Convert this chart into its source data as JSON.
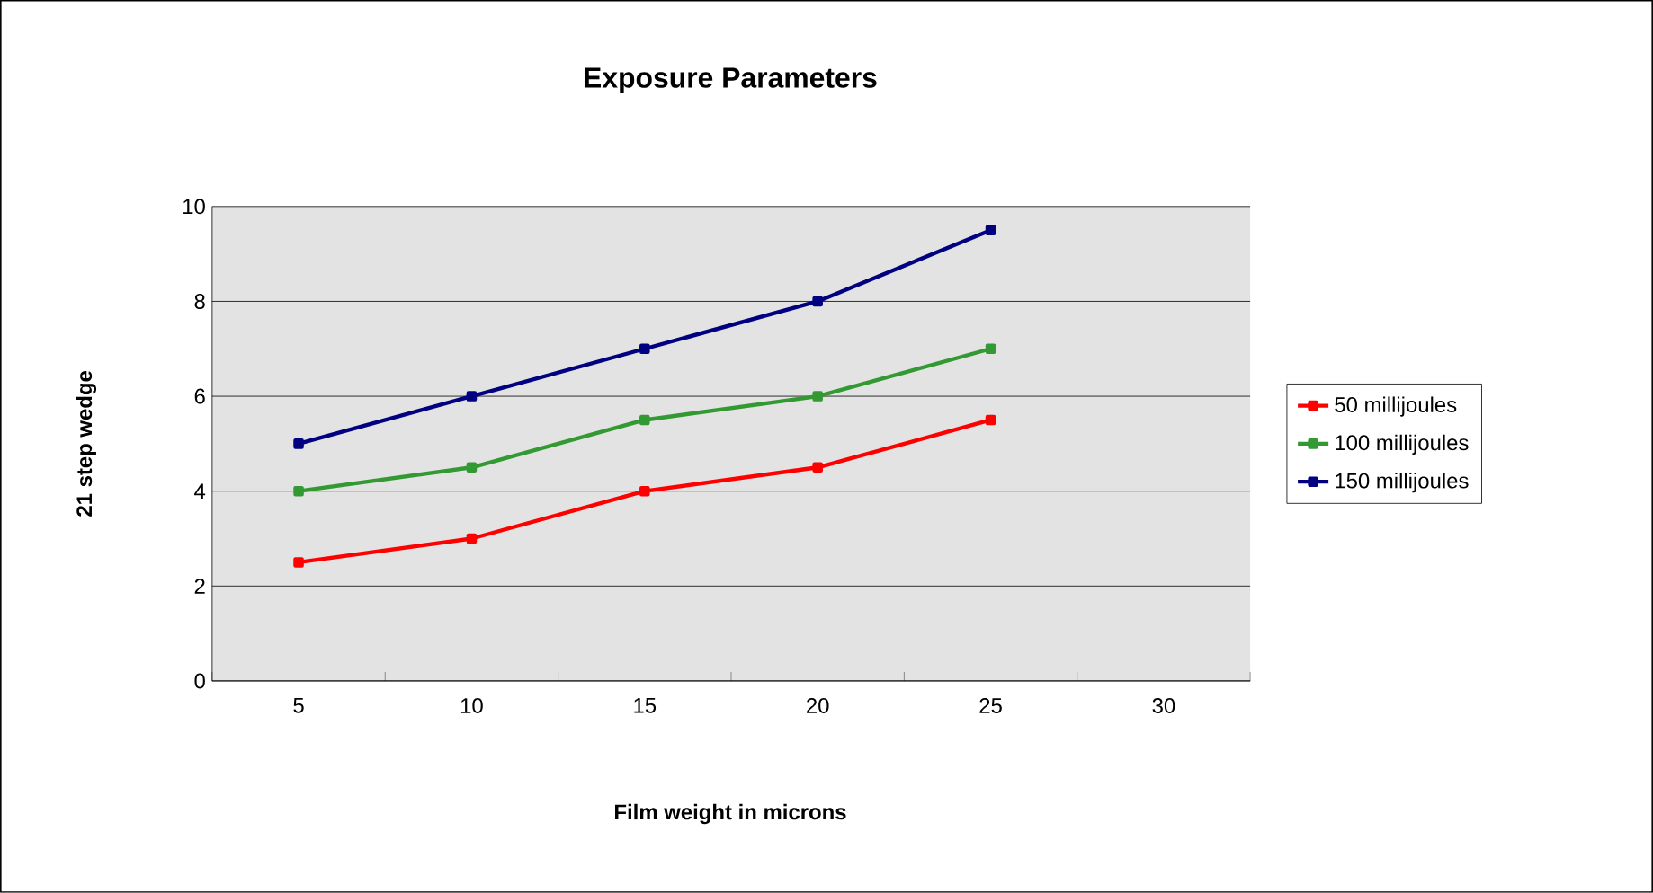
{
  "chart_data": {
    "type": "line",
    "title": "Exposure Parameters",
    "xlabel": "Film weight in microns",
    "ylabel": "21 step wedge",
    "categories": [
      "5",
      "10",
      "15",
      "20",
      "25",
      "30"
    ],
    "series": [
      {
        "name": "50 millijoules",
        "color": "#ff0000",
        "values": [
          2.5,
          3,
          4,
          4.5,
          5.5,
          null
        ]
      },
      {
        "name": "100 millijoules",
        "color": "#339933",
        "values": [
          4,
          4.5,
          5.5,
          6,
          7,
          null
        ]
      },
      {
        "name": "150 millijoules",
        "color": "#000080",
        "values": [
          5,
          6,
          7,
          8,
          9.5,
          null
        ]
      }
    ],
    "ylim": [
      0,
      10
    ],
    "yticks": [
      0,
      2,
      4,
      6,
      8,
      10
    ],
    "grid": "y",
    "legend": "right",
    "marker": "square",
    "line_style": "solid"
  }
}
